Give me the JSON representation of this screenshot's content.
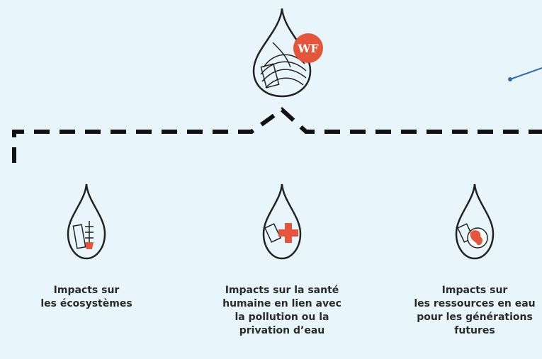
{
  "badge": "WF",
  "nodes": [
    {
      "lines": [
        "Impacts sur",
        "les écosystèmes"
      ]
    },
    {
      "lines": [
        "Impacts sur la santé",
        "humaine en lien avec",
        "la pollution ou la",
        "privation d’eau"
      ]
    },
    {
      "lines": [
        "Impacts sur",
        "les ressources en eau",
        "pour les générations",
        "futures"
      ]
    }
  ]
}
